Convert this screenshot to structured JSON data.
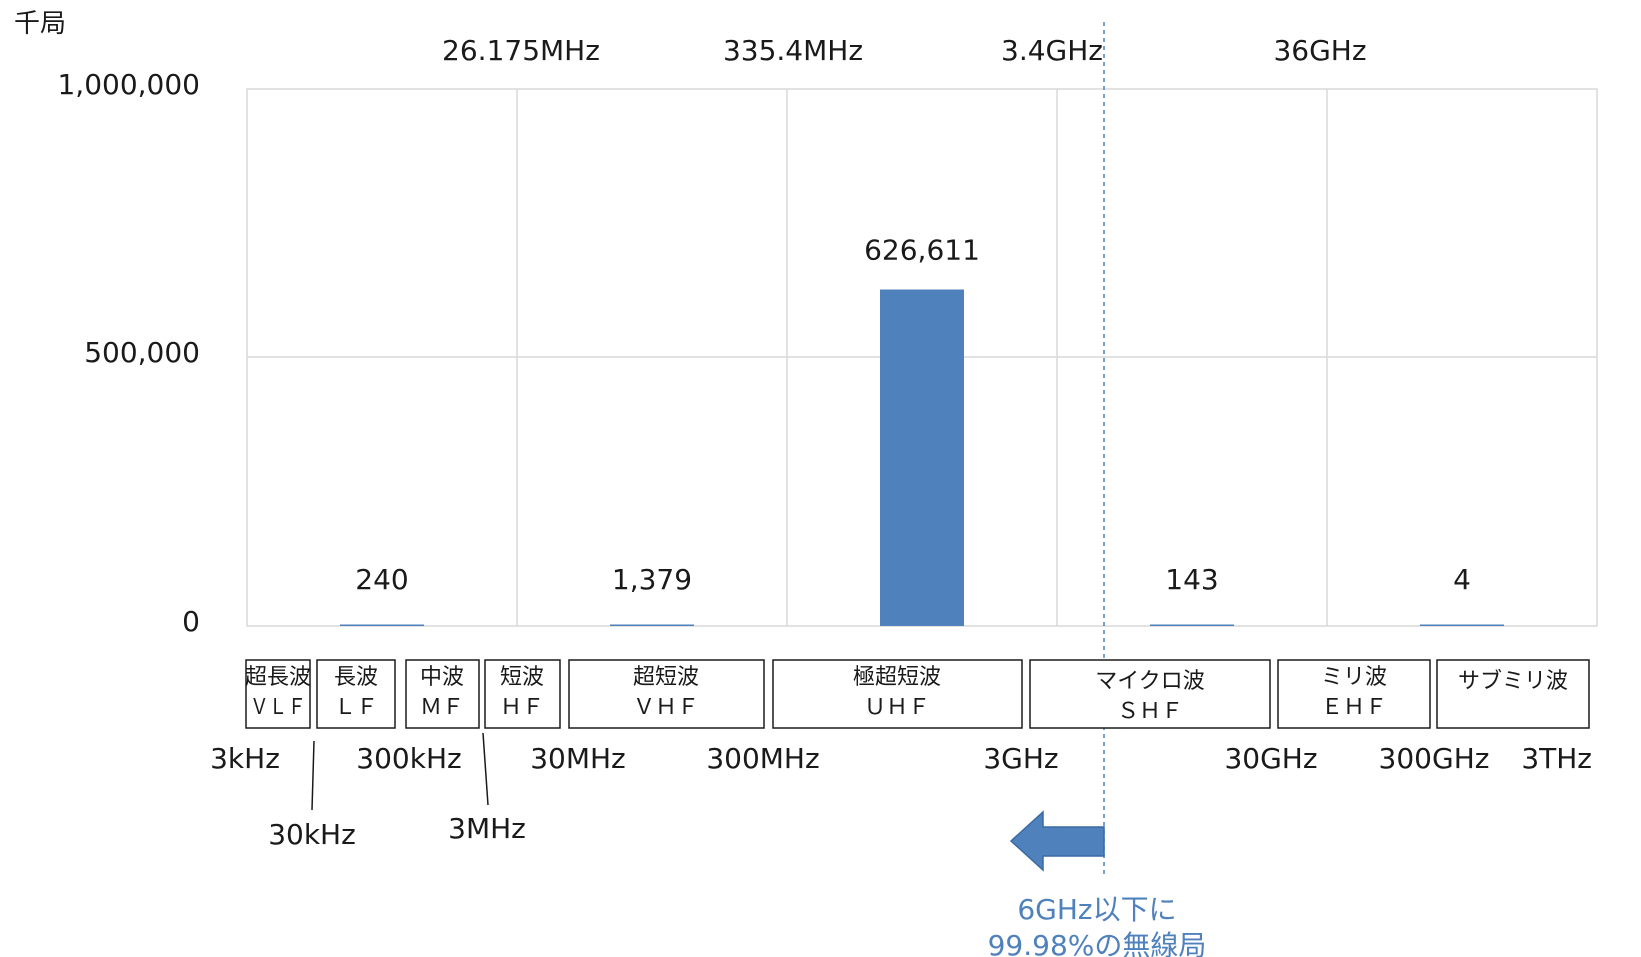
{
  "chart_data": {
    "type": "bar",
    "y_unit": "千局",
    "yticks": [
      "1,000,000",
      "500,000",
      "0"
    ],
    "ylim": [
      0,
      1000000
    ],
    "grid": true,
    "categories": [
      "3kHz–30MHz",
      "30MHz–300MHz",
      "300MHz–3GHz",
      "3GHz–30GHz",
      "30GHz–3THz"
    ],
    "values": [
      240,
      1379,
      626611,
      143,
      4
    ],
    "value_labels": [
      "240",
      "1,379",
      "626,611",
      "143",
      "4"
    ],
    "bar_color": "#4f81bd",
    "top_labels": [
      "26.175MHz",
      "335.4MHz",
      "3.4GHz",
      "36GHz"
    ],
    "bands": [
      {
        "name": "超長波",
        "abbr": "ＶＬＦ"
      },
      {
        "name": "長波",
        "abbr": "ＬＦ"
      },
      {
        "name": "中波",
        "abbr": "ＭＦ"
      },
      {
        "name": "短波",
        "abbr": "ＨＦ"
      },
      {
        "name": "超短波",
        "abbr": "ＶＨＦ"
      },
      {
        "name": "極超短波",
        "abbr": "ＵＨＦ"
      },
      {
        "name": "マイクロ波",
        "abbr": "ＳＨＦ"
      },
      {
        "name": "ミリ波",
        "abbr": "ＥＨＦ"
      },
      {
        "name": "サブミリ波",
        "abbr": ""
      }
    ],
    "frequency_labels": [
      "3kHz",
      "300kHz",
      "30MHz",
      "300MHz",
      "3GHz",
      "30GHz",
      "300GHz",
      "3THz"
    ],
    "frequency_labels_lower": [
      "30kHz",
      "3MHz"
    ],
    "annotation": {
      "line1": "6GHz以下に",
      "line2": "99.98%の無線局",
      "color": "#4f81bd"
    }
  }
}
